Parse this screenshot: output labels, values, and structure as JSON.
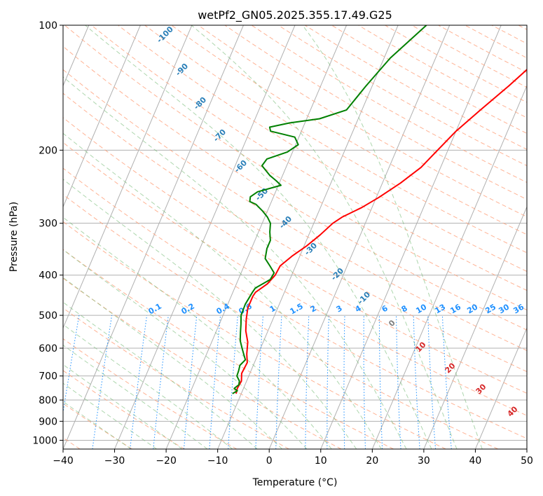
{
  "chart_data": {
    "type": "skew-t",
    "title": "wetPf2_GN05.2025.355.17.49.G25",
    "xlabel": "Temperature (°C)",
    "ylabel": "Pressure (hPa)",
    "xlim": [
      -40,
      50
    ],
    "ylim": [
      1050,
      100
    ],
    "x_ticks": [
      -40,
      -30,
      -20,
      -10,
      0,
      10,
      20,
      30,
      40,
      50
    ],
    "y_ticks": [
      100,
      200,
      300,
      400,
      500,
      600,
      700,
      800,
      900,
      1000
    ],
    "dry_adiabat_labels": [
      -100,
      -90,
      -80,
      -70,
      -60,
      -50,
      -40,
      -30,
      -20,
      -10
    ],
    "mixing_ratio_labels": [
      "0.1",
      "0.2",
      "0.4",
      "0.6",
      "1",
      "1.5",
      "2",
      "3",
      "4",
      "6",
      "8",
      "10",
      "13",
      "16",
      "20",
      "25",
      "30",
      "36"
    ],
    "moist_adiabat_labels": [
      0,
      10,
      20,
      30,
      40
    ],
    "series": [
      {
        "name": "Temperature",
        "color": "#ff0000",
        "points": [
          [
            772,
            -11.0
          ],
          [
            750,
            -11.2
          ],
          [
            720,
            -11.0
          ],
          [
            690,
            -11.6
          ],
          [
            650,
            -11.4
          ],
          [
            620,
            -12.2
          ],
          [
            580,
            -13.0
          ],
          [
            545,
            -14.3
          ],
          [
            510,
            -15.2
          ],
          [
            480,
            -15.8
          ],
          [
            450,
            -15.8
          ],
          [
            440,
            -15.6
          ],
          [
            420,
            -14.0
          ],
          [
            400,
            -13.2
          ],
          [
            380,
            -13.0
          ],
          [
            360,
            -11.5
          ],
          [
            340,
            -9.5
          ],
          [
            320,
            -7.8
          ],
          [
            300,
            -6.3
          ],
          [
            290,
            -5.0
          ],
          [
            275,
            -2.0
          ],
          [
            260,
            0.5
          ],
          [
            240,
            3.5
          ],
          [
            220,
            6.2
          ],
          [
            200,
            8.0
          ],
          [
            180,
            10.0
          ],
          [
            160,
            13.0
          ],
          [
            140,
            16.5
          ],
          [
            120,
            20.2
          ],
          [
            100,
            24.0
          ]
        ]
      },
      {
        "name": "Dewpoint",
        "color": "#008000",
        "points": [
          [
            772,
            -11.7
          ],
          [
            760,
            -11.0
          ],
          [
            750,
            -11.8
          ],
          [
            735,
            -11.2
          ],
          [
            720,
            -11.4
          ],
          [
            700,
            -12.3
          ],
          [
            680,
            -12.4
          ],
          [
            660,
            -12.6
          ],
          [
            640,
            -12.0
          ],
          [
            620,
            -12.8
          ],
          [
            600,
            -13.6
          ],
          [
            575,
            -14.6
          ],
          [
            550,
            -15.2
          ],
          [
            525,
            -15.8
          ],
          [
            500,
            -16.5
          ],
          [
            470,
            -16.6
          ],
          [
            440,
            -16.2
          ],
          [
            430,
            -16.0
          ],
          [
            410,
            -13.8
          ],
          [
            395,
            -13.6
          ],
          [
            380,
            -15.0
          ],
          [
            365,
            -16.5
          ],
          [
            345,
            -17.0
          ],
          [
            330,
            -17.0
          ],
          [
            315,
            -17.8
          ],
          [
            300,
            -18.4
          ],
          [
            290,
            -19.5
          ],
          [
            280,
            -21.0
          ],
          [
            270,
            -22.8
          ],
          [
            266,
            -24.2
          ],
          [
            259,
            -24.5
          ],
          [
            252,
            -23.5
          ],
          [
            243,
            -19.5
          ],
          [
            237,
            -20.8
          ],
          [
            230,
            -22.5
          ],
          [
            218,
            -24.8
          ],
          [
            210,
            -24.4
          ],
          [
            202,
            -21.0
          ],
          [
            194,
            -19.5
          ],
          [
            186,
            -20.8
          ],
          [
            180,
            -26.0
          ],
          [
            176,
            -26.5
          ],
          [
            172,
            -23.0
          ],
          [
            168,
            -17.5
          ],
          [
            160,
            -13.0
          ],
          [
            140,
            -11.2
          ],
          [
            120,
            -8.8
          ],
          [
            100,
            -4.5
          ]
        ]
      }
    ]
  }
}
